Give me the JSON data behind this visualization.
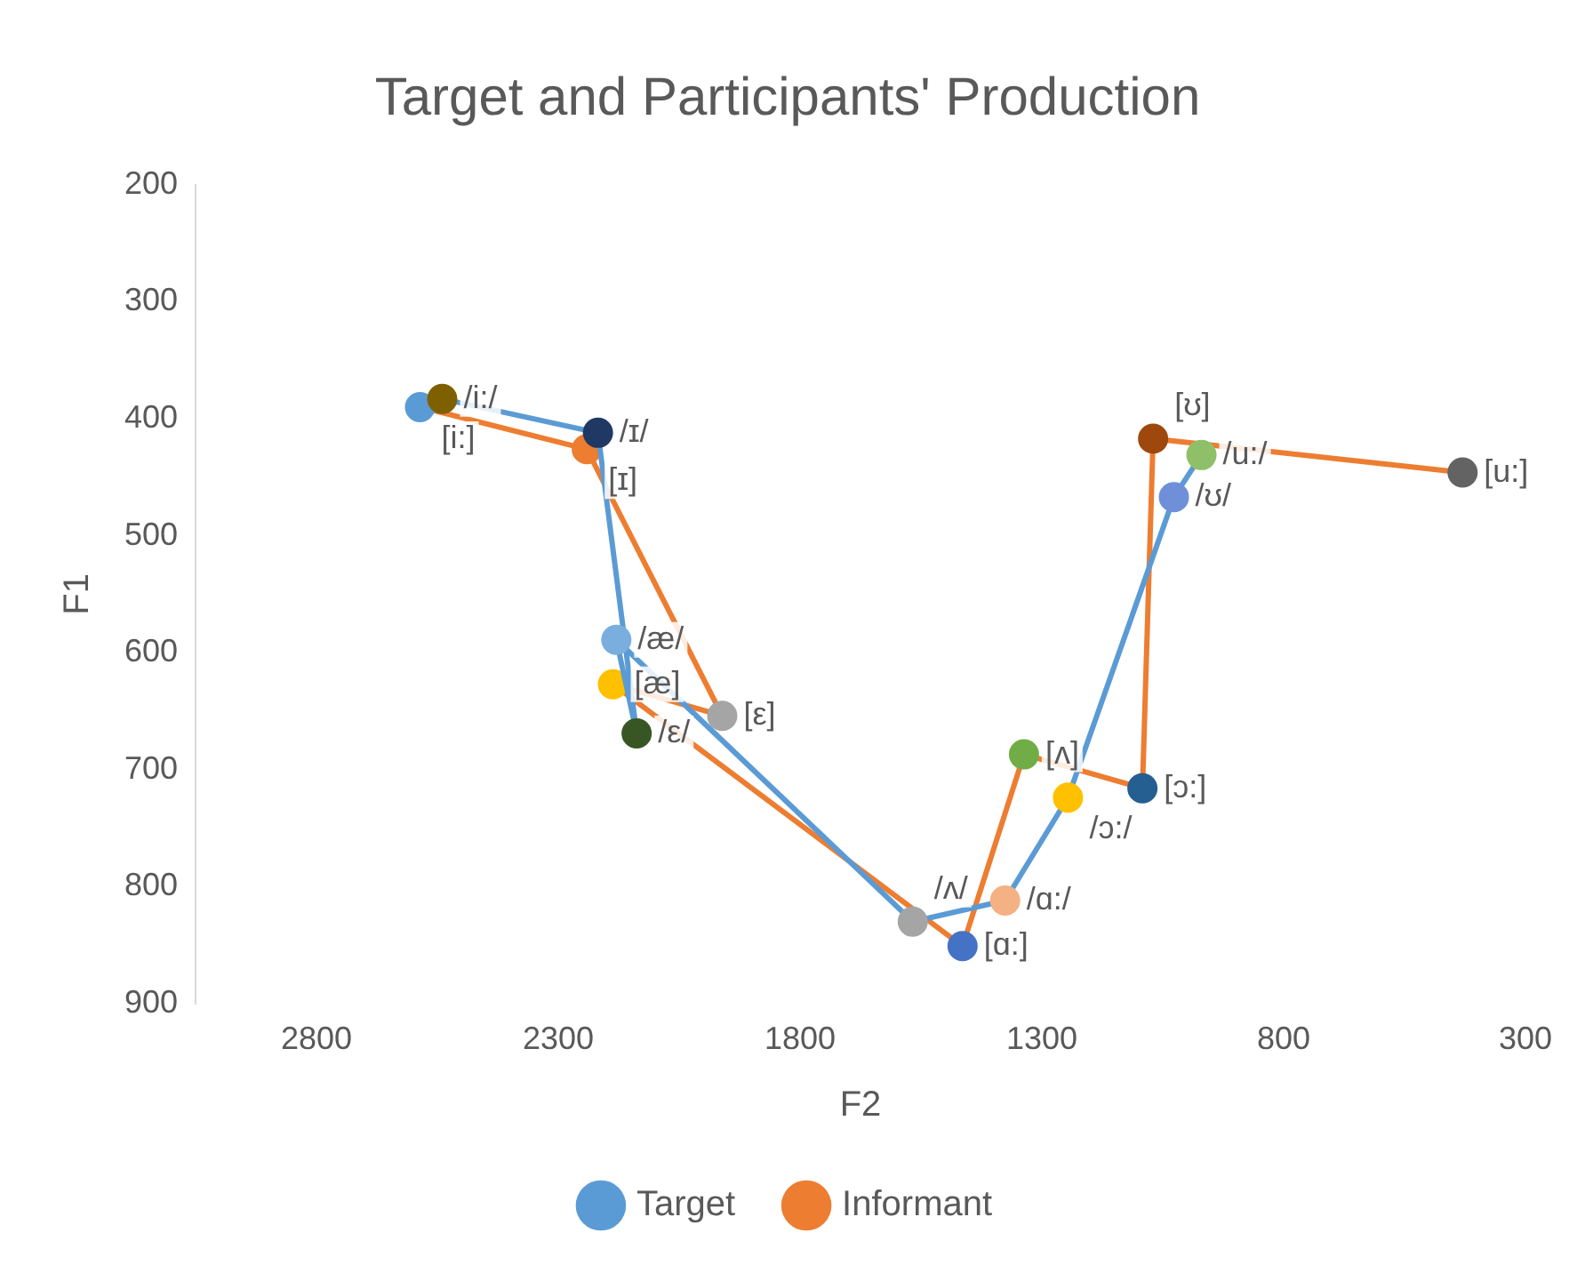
{
  "chart_data": {
    "type": "line",
    "title": "Target and Participants' Production",
    "xlabel": "F2",
    "ylabel": "F1",
    "xlim": [
      3050,
      300
    ],
    "xticks": [
      2800,
      2300,
      1800,
      1300,
      800,
      300
    ],
    "ylim": [
      900,
      200
    ],
    "yticks": [
      200,
      300,
      400,
      500,
      600,
      700,
      800,
      900
    ],
    "grid": false,
    "legend": "bottom",
    "marker": "circle",
    "line_style": "solid",
    "series": [
      {
        "name": "Target",
        "color": "#5b9bd5",
        "x": [
          2540,
          2218,
          2138,
          2180,
          1567,
          1376,
          1246,
          1027,
          970
        ],
        "values": [
          383,
          412,
          669,
          589,
          830,
          812,
          724,
          467,
          431
        ],
        "colors": [
          "#7f6000",
          "#1f3864",
          "#375623",
          "#7aaede",
          "#a5a5a5",
          "#f4b183",
          "#ffc000",
          "#6f8fd8",
          "#8fc069"
        ]
      },
      {
        "name": "Informant",
        "color": "#ed7d31",
        "x": [
          2586,
          2241,
          1961,
          2187,
          1464,
          1337,
          1092,
          1070,
          430
        ],
        "values": [
          390,
          426,
          654,
          627,
          851,
          687,
          716,
          417,
          446
        ],
        "colors": [
          "#5b9bd5",
          "#ed7d31",
          "#a5a5a5",
          "#ffc000",
          "#4472c4",
          "#70ad47",
          "#255e91",
          "#9e480e",
          "#636363"
        ]
      }
    ],
    "annotations": [
      {
        "text": "/i:/",
        "x": 2540,
        "y": 383
      },
      {
        "text": "/ɪ/",
        "x": 2218,
        "y": 412
      },
      {
        "text": "/ε/",
        "x": 2138,
        "y": 669
      },
      {
        "text": "/æ/",
        "x": 2180,
        "y": 589
      },
      {
        "text": "/ʌ/",
        "x": 1567,
        "y": 830
      },
      {
        "text": "/ɑ:/",
        "x": 1376,
        "y": 812
      },
      {
        "text": "/ɔ:/",
        "x": 1246,
        "y": 724
      },
      {
        "text": "/ʊ/",
        "x": 1027,
        "y": 467
      },
      {
        "text": "/u:/",
        "x": 970,
        "y": 431
      },
      {
        "text": "[i:]",
        "x": 2586,
        "y": 390
      },
      {
        "text": "[ɪ]",
        "x": 2241,
        "y": 426
      },
      {
        "text": "[ε]",
        "x": 1961,
        "y": 654
      },
      {
        "text": "[æ]",
        "x": 2187,
        "y": 627
      },
      {
        "text": "[ɑ:]",
        "x": 1464,
        "y": 851
      },
      {
        "text": "[ʌ]",
        "x": 1337,
        "y": 687
      },
      {
        "text": "[ɔ:]",
        "x": 1092,
        "y": 716
      },
      {
        "text": "[ʊ]",
        "x": 1070,
        "y": 417
      },
      {
        "text": "[u:]",
        "x": 430,
        "y": 446
      }
    ]
  }
}
